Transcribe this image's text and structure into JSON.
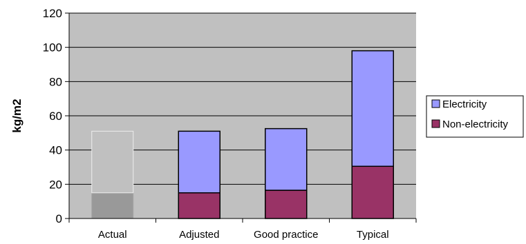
{
  "chart_data": {
    "type": "bar",
    "stacked": true,
    "title": "",
    "xlabel": "",
    "ylabel": "kg/m2",
    "ylim": [
      0,
      120
    ],
    "yticks": [
      0,
      20,
      40,
      60,
      80,
      100,
      120
    ],
    "grid": true,
    "legend_position": "right",
    "categories": [
      "Actual",
      "Adjusted",
      "Good practice",
      "Typical"
    ],
    "series": [
      {
        "name": "Non-electricity",
        "color": "#993366",
        "values": [
          15,
          15,
          16.5,
          30.5
        ]
      },
      {
        "name": "Electricity",
        "color": "#9999ff",
        "values": [
          36,
          36,
          36,
          67.5
        ]
      }
    ],
    "actual_bar_colors": {
      "non_electricity": "#999999",
      "electricity": "#c0c0c0"
    },
    "plot_background": "#c0c0c0",
    "legend_order": [
      "Electricity",
      "Non-electricity"
    ]
  }
}
